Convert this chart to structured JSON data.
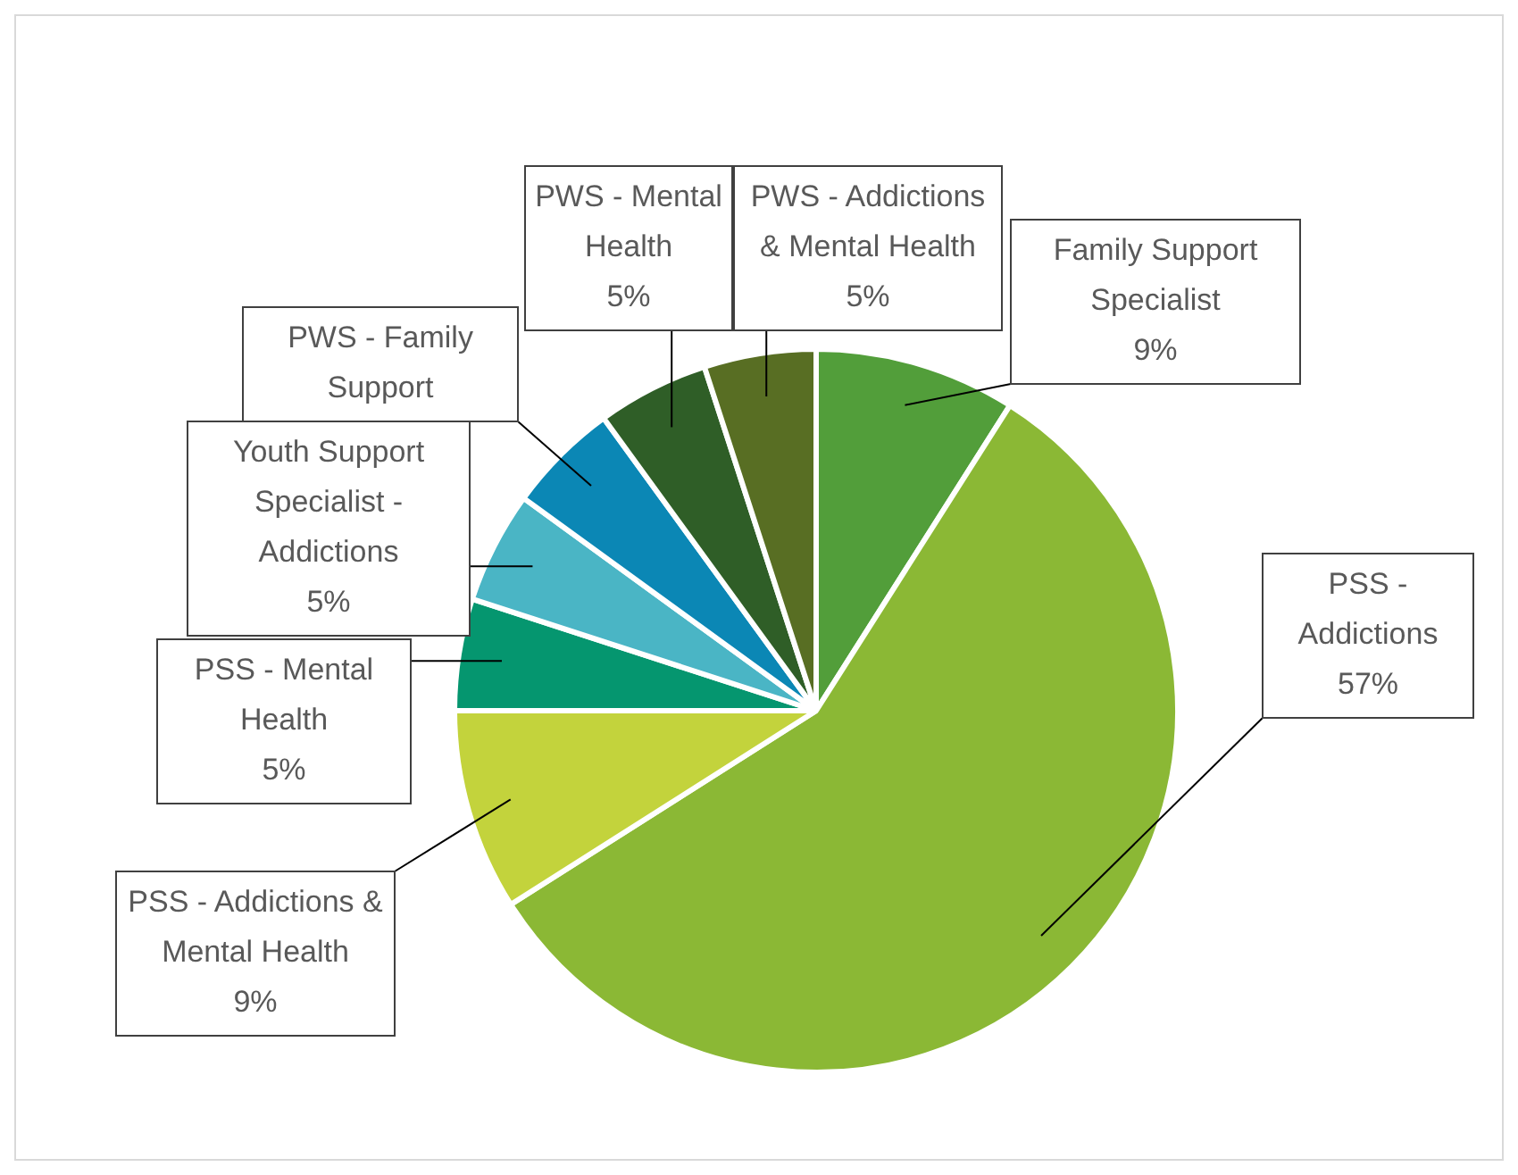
{
  "chart_data": {
    "type": "pie",
    "categories": [
      "Family Support Specialist",
      "PSS - Addictions",
      "PSS - Addictions & Mental Health",
      "PSS - Mental Health",
      "Youth Support Specialist - Addictions",
      "PWS - Family Support",
      "PWS - Mental Health",
      "PWS - Addictions & Mental Health"
    ],
    "values": [
      9,
      57,
      9,
      5,
      5,
      5,
      5,
      5
    ],
    "value_labels": [
      "9%",
      "57%",
      "9%",
      "5%",
      "5%",
      null,
      "5%",
      "5%"
    ],
    "colors": [
      "#529e3a",
      "#8bb835",
      "#c3d33c",
      "#05966f",
      "#4ab5c5",
      "#0b87b5",
      "#2f5e27",
      "#586e23"
    ],
    "legend": false
  }
}
